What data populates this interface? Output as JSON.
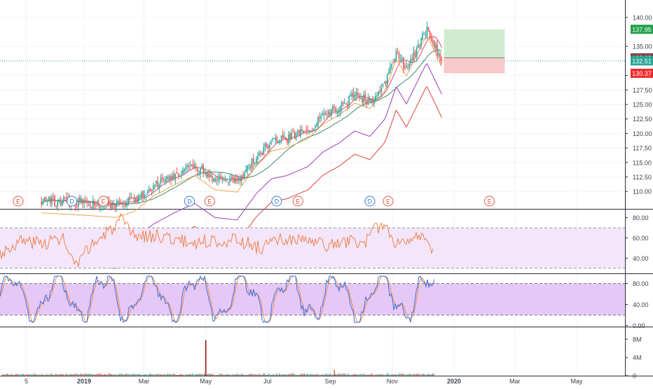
{
  "chart_data": [
    {
      "panel": "price",
      "type": "candlestick",
      "ylim": [
        107,
        143
      ],
      "y_ticks": [
        "140.00",
        "135.00",
        "130.00",
        "127.50",
        "125.00",
        "122.50",
        "120.00",
        "117.50",
        "115.00",
        "112.50",
        "110.00"
      ],
      "x_ticks": [
        "5",
        "2019",
        "Mar",
        "May",
        "Jul",
        "Sep",
        "Nov",
        "2020",
        "Mar",
        "May"
      ],
      "price_labels": [
        {
          "text": "137.95",
          "value": 137.95,
          "color": "#22a04b"
        },
        {
          "text": "133.03",
          "value": 133.03,
          "color": "#7a4a4a"
        },
        {
          "text": "132.51",
          "value": 132.51,
          "color": "#26a69a"
        },
        {
          "text": "130.37",
          "value": 130.37,
          "color": "#ef2b2b"
        }
      ],
      "last_price": 132.51,
      "position_tool": {
        "entry": 133.03,
        "target": 137.95,
        "stop": 130.37,
        "profit_color": "#cfecd0",
        "loss_color": "#f8c9c9"
      },
      "candles_anchor": [
        [
          "2018-11-20",
          108.5
        ],
        [
          "2018-12-31",
          108.0
        ],
        [
          "2019-02-01",
          107.5
        ],
        [
          "2019-02-20",
          108.5
        ],
        [
          "2019-03-10",
          111.0
        ],
        [
          "2019-04-01",
          113.0
        ],
        [
          "2019-04-20",
          114.5
        ],
        [
          "2019-05-10",
          112.0
        ],
        [
          "2019-06-01",
          111.5
        ],
        [
          "2019-06-20",
          116.0
        ],
        [
          "2019-07-05",
          118.5
        ],
        [
          "2019-07-20",
          119.0
        ],
        [
          "2019-08-10",
          120.5
        ],
        [
          "2019-08-25",
          123.0
        ],
        [
          "2019-09-10",
          124.5
        ],
        [
          "2019-09-25",
          126.5
        ],
        [
          "2019-10-10",
          125.5
        ],
        [
          "2019-10-25",
          128.5
        ],
        [
          "2019-11-05",
          134.0
        ],
        [
          "2019-11-15",
          131.0
        ],
        [
          "2019-11-25",
          134.5
        ],
        [
          "2019-12-05",
          138.0
        ],
        [
          "2019-12-12",
          135.5
        ],
        [
          "2019-12-20",
          132.5
        ]
      ],
      "moving_averages": [
        {
          "color": "#e64a6a"
        },
        {
          "color": "#3d8a6a"
        },
        {
          "color": "#f5a04a"
        },
        {
          "color": "#9a3fb5"
        },
        {
          "color": "#e0433a"
        }
      ],
      "events": [
        {
          "label": "E",
          "date": "2018-10-28",
          "color": "#e05a4a"
        },
        {
          "label": "D",
          "date": "2018-12-20",
          "color": "#3b7bd6"
        },
        {
          "label": "E",
          "date": "2019-01-20",
          "color": "#e05a4a"
        },
        {
          "label": "D",
          "date": "2019-04-15",
          "color": "#3b7bd6"
        },
        {
          "label": "E",
          "date": "2019-05-05",
          "color": "#e05a4a"
        },
        {
          "label": "D",
          "date": "2019-07-10",
          "color": "#3b7bd6"
        },
        {
          "label": "E",
          "date": "2019-07-31",
          "color": "#e05a4a"
        },
        {
          "label": "D",
          "date": "2019-10-10",
          "color": "#3b7bd6"
        },
        {
          "label": "E",
          "date": "2019-10-28",
          "color": "#e05a4a"
        },
        {
          "label": "E",
          "date": "2020-02-05",
          "color": "#e05a4a"
        }
      ]
    },
    {
      "panel": "rsi",
      "type": "line",
      "ylim": [
        25,
        88
      ],
      "y_ticks": [
        "80.00",
        "60.00",
        "40.00"
      ],
      "band": [
        30,
        70
      ],
      "color": "#f0824a",
      "band_fill": "#f3e6fb",
      "points": [
        [
          0,
          45
        ],
        [
          30,
          57
        ],
        [
          60,
          55
        ],
        [
          90,
          60
        ],
        [
          100,
          40
        ],
        [
          112,
          32
        ],
        [
          125,
          50
        ],
        [
          150,
          63
        ],
        [
          172,
          77
        ],
        [
          190,
          62
        ],
        [
          230,
          62
        ],
        [
          270,
          55
        ],
        [
          300,
          57
        ],
        [
          340,
          58
        ],
        [
          370,
          50
        ],
        [
          400,
          58
        ],
        [
          440,
          57
        ],
        [
          470,
          52
        ],
        [
          500,
          57
        ],
        [
          520,
          55
        ],
        [
          545,
          75
        ],
        [
          565,
          55
        ],
        [
          590,
          63
        ],
        [
          608,
          55
        ],
        [
          618,
          43
        ]
      ]
    },
    {
      "panel": "stoch",
      "type": "line",
      "ylim": [
        -2,
        98
      ],
      "y_ticks": [
        "80.00",
        "40.00",
        "0.00"
      ],
      "band": [
        20,
        80
      ],
      "band_fill": "#e6c8f6",
      "k_color": "#3b6fe0",
      "d_color": "#f08a4a"
    },
    {
      "panel": "volume",
      "type": "bar",
      "ylim": [
        0,
        10
      ],
      "y_ticks": [
        "8M",
        "4M",
        "0"
      ],
      "spike": {
        "date": "2019-05-01",
        "value": 7.8,
        "color": "#a52a2a"
      },
      "bar_up": "#4aa58c",
      "bar_down": "#d35a4a"
    }
  ]
}
